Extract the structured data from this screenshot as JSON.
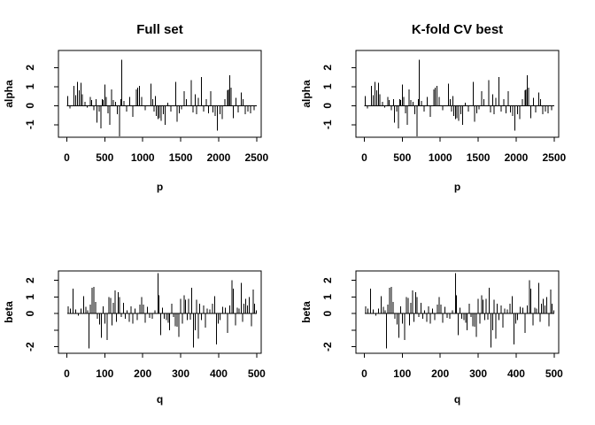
{
  "figure": {
    "background": "#ffffff",
    "foreground": "#000000"
  },
  "chart_data": {
    "type": "bar",
    "layout": "2x2-grid",
    "grid": false,
    "legend": "none",
    "datasets": {
      "alpha": {
        "n": 2500,
        "x_start": 1,
        "x_end": 2500,
        "points": [
          [
            10,
            0.5
          ],
          [
            40,
            -0.15
          ],
          [
            95,
            1.05
          ],
          [
            120,
            0.55
          ],
          [
            140,
            1.25
          ],
          [
            165,
            0.8
          ],
          [
            185,
            1.2
          ],
          [
            205,
            0.6
          ],
          [
            240,
            0.2
          ],
          [
            270,
            -0.1
          ],
          [
            310,
            0.45
          ],
          [
            330,
            0.3
          ],
          [
            355,
            -0.25
          ],
          [
            385,
            0.35
          ],
          [
            400,
            -0.9
          ],
          [
            425,
            -0.3
          ],
          [
            450,
            -1.2
          ],
          [
            465,
            0.35
          ],
          [
            480,
            0.3
          ],
          [
            500,
            1.1
          ],
          [
            520,
            0.45
          ],
          [
            545,
            -0.4
          ],
          [
            565,
            -1.0
          ],
          [
            590,
            0.85
          ],
          [
            610,
            0.3
          ],
          [
            640,
            0.2
          ],
          [
            665,
            -0.45
          ],
          [
            695,
            -1.62
          ],
          [
            710,
            0.35
          ],
          [
            726,
            2.4
          ],
          [
            755,
            0.25
          ],
          [
            790,
            -0.3
          ],
          [
            830,
            0.45
          ],
          [
            870,
            -0.6
          ],
          [
            915,
            0.85
          ],
          [
            935,
            0.95
          ],
          [
            955,
            1.05
          ],
          [
            985,
            0.45
          ],
          [
            1030,
            -0.25
          ],
          [
            1110,
            1.15
          ],
          [
            1130,
            0.35
          ],
          [
            1150,
            -0.3
          ],
          [
            1165,
            0.5
          ],
          [
            1180,
            -0.55
          ],
          [
            1200,
            -0.7
          ],
          [
            1220,
            -0.65
          ],
          [
            1245,
            -0.8
          ],
          [
            1270,
            -0.45
          ],
          [
            1295,
            -1.0
          ],
          [
            1330,
            0.15
          ],
          [
            1370,
            -0.3
          ],
          [
            1435,
            1.25
          ],
          [
            1455,
            -0.85
          ],
          [
            1480,
            -0.4
          ],
          [
            1510,
            -0.2
          ],
          [
            1546,
            0.75
          ],
          [
            1575,
            0.35
          ],
          [
            1640,
            1.35
          ],
          [
            1665,
            -0.35
          ],
          [
            1690,
            0.6
          ],
          [
            1710,
            -0.45
          ],
          [
            1735,
            0.4
          ],
          [
            1775,
            1.5
          ],
          [
            1805,
            -0.3
          ],
          [
            1835,
            0.35
          ],
          [
            1865,
            -0.4
          ],
          [
            1895,
            0.75
          ],
          [
            1925,
            -0.35
          ],
          [
            1955,
            -0.55
          ],
          [
            1985,
            -1.3
          ],
          [
            2015,
            -0.45
          ],
          [
            2045,
            -0.7
          ],
          [
            2080,
            0.35
          ],
          [
            2115,
            0.8
          ],
          [
            2130,
            0.85
          ],
          [
            2145,
            1.6
          ],
          [
            2165,
            0.95
          ],
          [
            2195,
            -0.65
          ],
          [
            2225,
            0.4
          ],
          [
            2255,
            -0.35
          ],
          [
            2295,
            0.7
          ],
          [
            2320,
            0.35
          ],
          [
            2350,
            -0.45
          ],
          [
            2385,
            -0.3
          ],
          [
            2420,
            -0.4
          ],
          [
            2465,
            -0.25
          ]
        ]
      },
      "beta": {
        "n": 500,
        "x_start": 1,
        "x_end": 500,
        "points": [
          [
            4,
            0.45
          ],
          [
            10,
            0.3
          ],
          [
            17,
            1.5
          ],
          [
            24,
            0.25
          ],
          [
            30,
            -0.12
          ],
          [
            37,
            0.3
          ],
          [
            44,
            1.05
          ],
          [
            50,
            0.4
          ],
          [
            55,
            0.2
          ],
          [
            58,
            -2.1
          ],
          [
            62,
            0.55
          ],
          [
            67,
            1.55
          ],
          [
            71,
            1.6
          ],
          [
            76,
            0.7
          ],
          [
            81,
            -0.3
          ],
          [
            86,
            -0.65
          ],
          [
            91,
            -1.45
          ],
          [
            96,
            0.45
          ],
          [
            101,
            -0.6
          ],
          [
            106,
            -1.6
          ],
          [
            111,
            1.0
          ],
          [
            115,
            0.95
          ],
          [
            119,
            -0.7
          ],
          [
            123,
            0.65
          ],
          [
            127,
            1.4
          ],
          [
            131,
            -0.5
          ],
          [
            135,
            1.3
          ],
          [
            139,
            1.0
          ],
          [
            144,
            -0.2
          ],
          [
            149,
            0.65
          ],
          [
            154,
            -0.3
          ],
          [
            159,
            0.2
          ],
          [
            164,
            -0.5
          ],
          [
            169,
            0.45
          ],
          [
            174,
            -0.6
          ],
          [
            180,
            0.3
          ],
          [
            186,
            -0.4
          ],
          [
            192,
            0.55
          ],
          [
            197,
            1.0
          ],
          [
            202,
            0.55
          ],
          [
            207,
            -0.55
          ],
          [
            212,
            0.4
          ],
          [
            218,
            -0.25
          ],
          [
            225,
            -0.3
          ],
          [
            232,
            0.2
          ],
          [
            240,
            2.45
          ],
          [
            243,
            1.1
          ],
          [
            247,
            -1.3
          ],
          [
            252,
            0.35
          ],
          [
            257,
            -0.3
          ],
          [
            262,
            -0.4
          ],
          [
            267,
            -0.55
          ],
          [
            271,
            -1.0
          ],
          [
            276,
            0.6
          ],
          [
            281,
            -0.2
          ],
          [
            286,
            -0.75
          ],
          [
            291,
            -0.8
          ],
          [
            295,
            -1.4
          ],
          [
            300,
            0.9
          ],
          [
            304,
            -0.6
          ],
          [
            309,
            1.1
          ],
          [
            313,
            0.85
          ],
          [
            317,
            -0.4
          ],
          [
            321,
            0.9
          ],
          [
            325,
            -0.35
          ],
          [
            329,
            1.55
          ],
          [
            334,
            -2.05
          ],
          [
            338,
            -1.0
          ],
          [
            342,
            0.85
          ],
          [
            346,
            -1.5
          ],
          [
            350,
            0.6
          ],
          [
            355,
            -0.4
          ],
          [
            360,
            0.5
          ],
          [
            365,
            -0.85
          ],
          [
            370,
            0.3
          ],
          [
            377,
            0.25
          ],
          [
            384,
            0.6
          ],
          [
            389,
            1.05
          ],
          [
            394,
            -1.85
          ],
          [
            399,
            -0.6
          ],
          [
            404,
            -0.4
          ],
          [
            411,
            0.4
          ],
          [
            417,
            0.35
          ],
          [
            423,
            -1.15
          ],
          [
            429,
            0.5
          ],
          [
            435,
            2.0
          ],
          [
            439,
            1.5
          ],
          [
            444,
            -0.7
          ],
          [
            449,
            0.35
          ],
          [
            454,
            0.3
          ],
          [
            459,
            1.85
          ],
          [
            463,
            -0.5
          ],
          [
            467,
            0.6
          ],
          [
            471,
            0.9
          ],
          [
            476,
            0.5
          ],
          [
            481,
            1.0
          ],
          [
            486,
            -0.75
          ],
          [
            491,
            1.45
          ],
          [
            495,
            0.6
          ],
          [
            499,
            0.2
          ]
        ]
      }
    },
    "panels": [
      {
        "id": "full-set-alpha",
        "title": "Full set",
        "xlabel": "p",
        "ylabel": "alpha",
        "dataset": "alpha",
        "xlim": [
          -110,
          2560
        ],
        "ylim": [
          -1.66,
          2.9
        ],
        "xticks": [
          0,
          500,
          1000,
          1500,
          2000,
          2500
        ],
        "xtick_labels": [
          "0",
          "500",
          "1000",
          "1500",
          "2000",
          "2500"
        ],
        "yticks": [
          -1,
          0,
          1,
          2
        ],
        "ytick_labels": [
          "-1",
          "0",
          "1",
          "2"
        ]
      },
      {
        "id": "kfold-cv-alpha",
        "title": "K-fold CV best",
        "xlabel": "p",
        "ylabel": "alpha",
        "dataset": "alpha",
        "xlim": [
          -110,
          2560
        ],
        "ylim": [
          -1.66,
          2.9
        ],
        "xticks": [
          0,
          500,
          1000,
          1500,
          2000,
          2500
        ],
        "xtick_labels": [
          "0",
          "500",
          "1000",
          "1500",
          "2000",
          "2500"
        ],
        "yticks": [
          -1,
          0,
          1,
          2
        ],
        "ytick_labels": [
          "-1",
          "0",
          "1",
          "2"
        ]
      },
      {
        "id": "full-set-beta",
        "title": "",
        "xlabel": "q",
        "ylabel": "beta",
        "dataset": "beta",
        "xlim": [
          -22,
          512
        ],
        "ylim": [
          -2.39,
          2.57
        ],
        "xticks": [
          0,
          100,
          200,
          300,
          400,
          500
        ],
        "xtick_labels": [
          "0",
          "100",
          "200",
          "300",
          "400",
          "500"
        ],
        "yticks": [
          -2,
          -1,
          0,
          1,
          2
        ],
        "ytick_labels": [
          "-2",
          "",
          "0",
          "1",
          "2"
        ]
      },
      {
        "id": "kfold-cv-beta",
        "title": "",
        "xlabel": "q",
        "ylabel": "beta",
        "dataset": "beta",
        "xlim": [
          -22,
          512
        ],
        "ylim": [
          -2.39,
          2.57
        ],
        "xticks": [
          0,
          100,
          200,
          300,
          400,
          500
        ],
        "xtick_labels": [
          "0",
          "100",
          "200",
          "300",
          "400",
          "500"
        ],
        "yticks": [
          -2,
          -1,
          0,
          1,
          2
        ],
        "ytick_labels": [
          "-2",
          "",
          "0",
          "1",
          "2"
        ]
      }
    ]
  }
}
